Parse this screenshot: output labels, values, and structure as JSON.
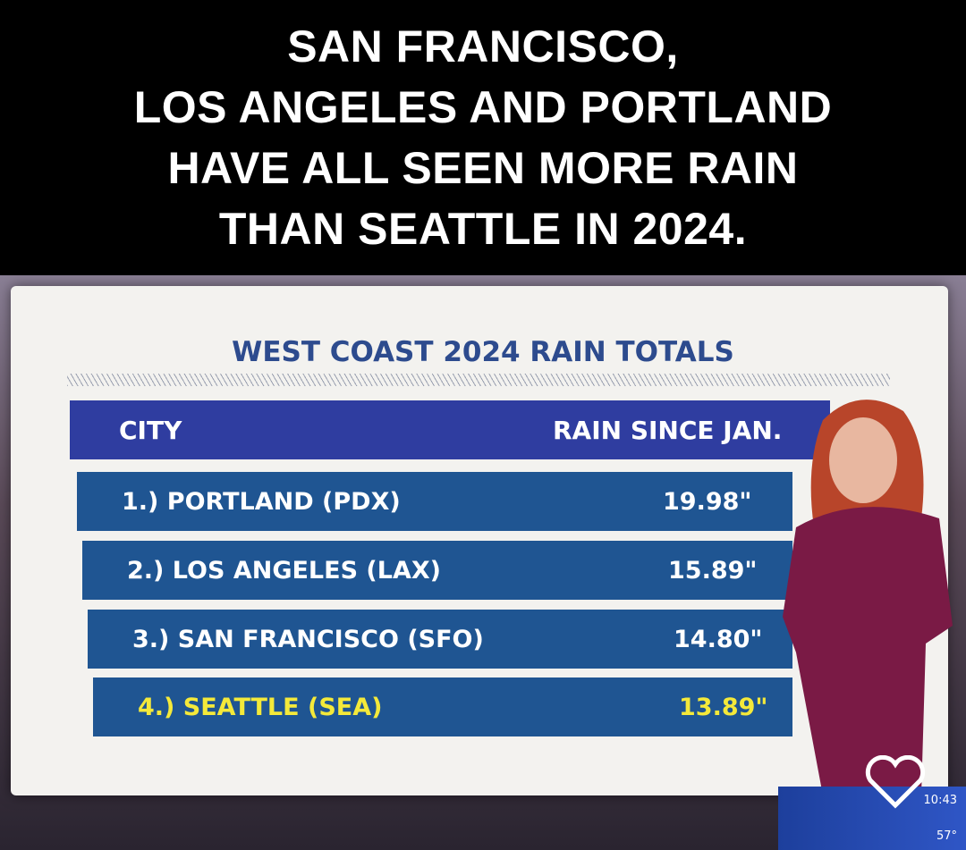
{
  "caption": {
    "lines": [
      "SAN FRANCISCO,",
      "LOS ANGELES AND PORTLAND",
      "HAVE ALL SEEN MORE RAIN",
      "THAN SEATTLE IN 2024."
    ]
  },
  "board": {
    "title": "WEST COAST 2024 RAIN TOTALS",
    "table": {
      "header": [
        "CITY",
        "RAIN SINCE JAN."
      ],
      "rows": [
        [
          "1.) PORTLAND (PDX)",
          "19.98\""
        ],
        [
          "2.) LOS ANGELES (LAX)",
          "15.89\""
        ],
        [
          "3.) SAN FRANCISCO (SFO)",
          "14.80\""
        ],
        [
          "4.) SEATTLE (SEA)",
          "13.89\""
        ]
      ]
    }
  },
  "ticker": {
    "time": "10:43",
    "temperature": "57°"
  }
}
